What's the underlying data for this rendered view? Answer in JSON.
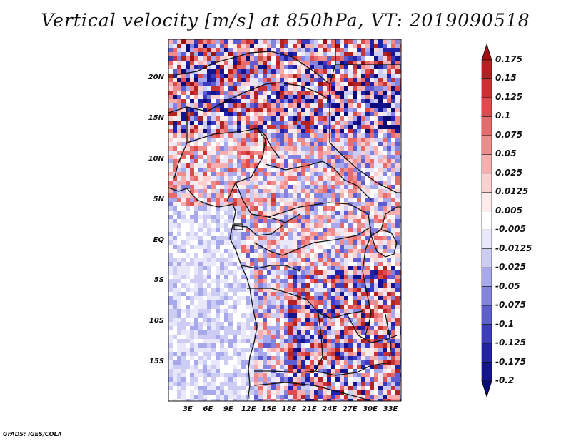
{
  "title": "Vertical velocity [m/s] at 850hPa, VT: 2019090518",
  "footer": "GrADS: IGES/COLA",
  "map": {
    "variable": "Vertical velocity",
    "units": "m/s",
    "level": "850hPa",
    "valid_time": "2019090518",
    "lat_labels": [
      "20N",
      "15N",
      "10N",
      "5N",
      "EQ",
      "5S",
      "10S",
      "15S"
    ],
    "lon_labels": [
      "3E",
      "6E",
      "9E",
      "12E",
      "15E",
      "18E",
      "21E",
      "24E",
      "27E",
      "30E",
      "33E"
    ]
  },
  "colorbar": {
    "labels": [
      "0.175",
      "0.15",
      "0.125",
      "0.1",
      "0.075",
      "0.05",
      "0.025",
      "0.0125",
      "0.005",
      "-0.005",
      "-0.0125",
      "-0.025",
      "-0.05",
      "-0.075",
      "-0.1",
      "-0.125",
      "-0.175",
      "-0.2"
    ],
    "colors": [
      "#a01010",
      "#b22222",
      "#c83232",
      "#dc4c4c",
      "#e86a6a",
      "#f08c8c",
      "#f6aeae",
      "#fad0d0",
      "#fdeaea",
      "#ffffff",
      "#e8e8fa",
      "#cdcdf4",
      "#a8a8ec",
      "#8484e0",
      "#5e5ed2",
      "#3c3cc0",
      "#2222a8",
      "#141490",
      "#0a0a78"
    ]
  }
}
